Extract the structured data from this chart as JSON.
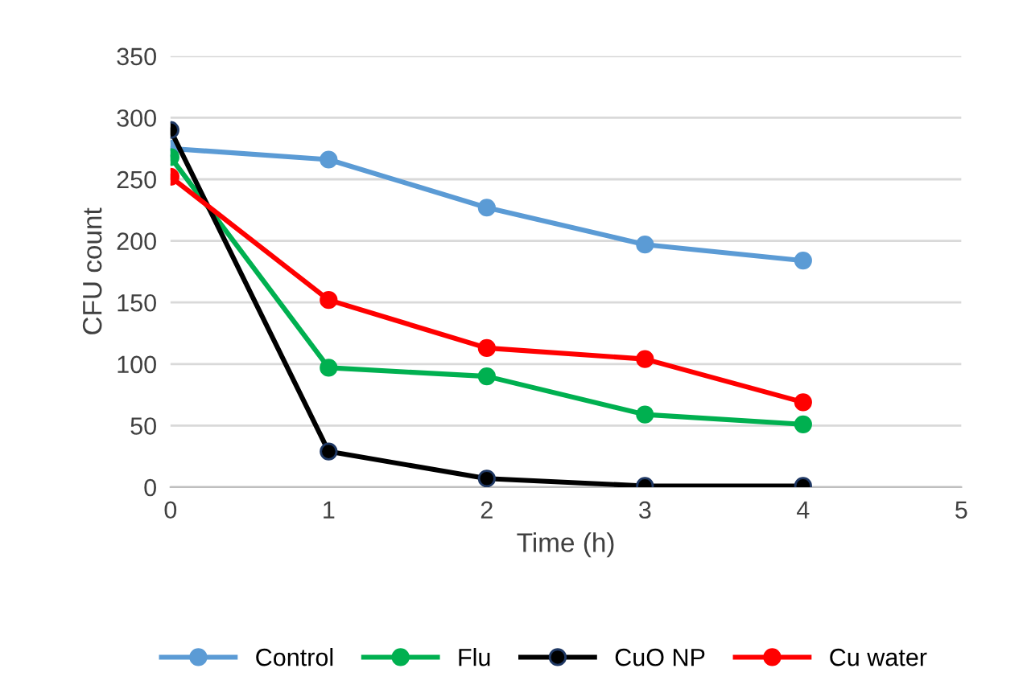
{
  "chart_data": {
    "type": "line",
    "xlabel": "Time (h)",
    "ylabel": "CFU count",
    "x": [
      0,
      1,
      2,
      3,
      4
    ],
    "series": [
      {
        "name": "Control",
        "color": "#5b9bd5",
        "values": [
          275,
          266,
          227,
          197,
          184
        ]
      },
      {
        "name": "Flu",
        "color": "#00b050",
        "values": [
          268,
          97,
          90,
          59,
          51
        ]
      },
      {
        "name": "CuO NP",
        "color": "#000000",
        "values": [
          290,
          29,
          7,
          1,
          1
        ]
      },
      {
        "name": "Cu water",
        "color": "#ff0000",
        "values": [
          252,
          152,
          113,
          104,
          69
        ]
      }
    ],
    "xlim": [
      0,
      5
    ],
    "xticks": [
      0,
      1,
      2,
      3,
      4,
      5
    ],
    "ylim": [
      0,
      350
    ],
    "yticks": [
      0,
      50,
      100,
      150,
      200,
      250,
      300,
      350
    ],
    "grid": "y",
    "legend": "bottom",
    "marker": "circle",
    "line_style": "solid"
  }
}
